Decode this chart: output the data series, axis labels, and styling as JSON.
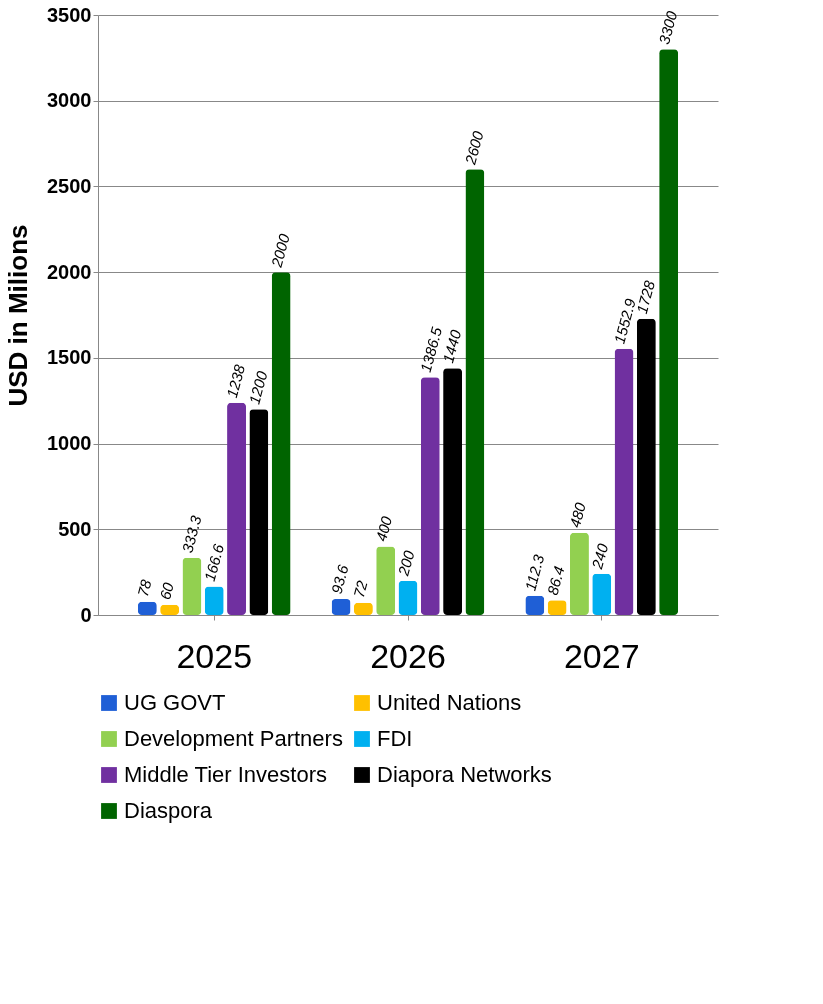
{
  "chart_data": {
    "type": "bar",
    "ylabel": "USD in Milions",
    "categories": [
      "2025",
      "2026",
      "2027"
    ],
    "series": [
      {
        "name": "UG GOVT",
        "color": "#1f5fd6",
        "values": [
          78,
          93.6,
          112.3
        ]
      },
      {
        "name": "United Nations",
        "color": "#ffc000",
        "values": [
          60,
          72,
          86.4
        ]
      },
      {
        "name": "Development Partners",
        "color": "#92d050",
        "values": [
          333.3,
          400,
          480
        ]
      },
      {
        "name": "FDI",
        "color": "#00b0f0",
        "values": [
          166.6,
          200,
          240
        ]
      },
      {
        "name": "Middle Tier Investors",
        "color": "#7030a0",
        "values": [
          1238,
          1386.5,
          1552.9
        ]
      },
      {
        "name": "Diapora Networks",
        "color": "#000000",
        "values": [
          1200,
          1440,
          1728
        ]
      },
      {
        "name": "Diaspora",
        "color": "#006400",
        "values": [
          2000,
          2600,
          3300
        ]
      }
    ],
    "ylim": [
      0,
      3500
    ],
    "yticks": [
      0,
      500,
      1000,
      1500,
      2000,
      2500,
      3000,
      3500
    ],
    "grid": "y",
    "legend": "bottom",
    "data_labels": true
  }
}
